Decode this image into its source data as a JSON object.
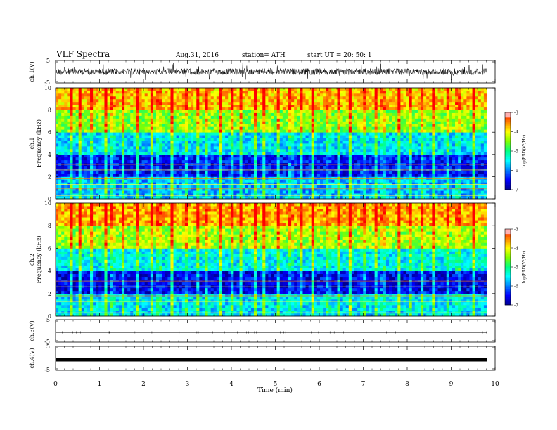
{
  "header": {
    "title": "VLF  Spectra",
    "date": "Aug.31, 2016",
    "station": "station= ATH",
    "start": "start  UT  =   20: 50: 1"
  },
  "chart_data": [
    {
      "type": "line",
      "panel": "ch1-waveform",
      "ylabel": "ch.1(V)",
      "yticks": [
        "5",
        "-5"
      ],
      "ylim": [
        -5,
        5
      ],
      "xlim": [
        0,
        10
      ],
      "signal": "dense noise waveform, amplitude approx ±1 V with spikes to ±2 V"
    },
    {
      "type": "heatmap",
      "panel": "ch1-spectrogram",
      "ylabel": "ch.1\nFrequency  (kHz)",
      "yticks": [
        "0",
        "2",
        "4",
        "6",
        "8",
        "10"
      ],
      "ylim": [
        0,
        10
      ],
      "xlim": [
        0,
        9.8
      ],
      "colorbar": {
        "label": "log(PSD(V²/Hz)",
        "ticks": [
          "-3",
          "-4",
          "-5",
          "-6",
          "-7"
        ],
        "range": [
          -7,
          -3
        ]
      },
      "description_levels": [
        {
          "freq_khz": [
            0,
            2
          ],
          "logpsd": -5.8
        },
        {
          "freq_khz": [
            2,
            4
          ],
          "logpsd": -6.5
        },
        {
          "freq_khz": [
            4,
            6
          ],
          "logpsd": -5.6
        },
        {
          "freq_khz": [
            6,
            8
          ],
          "logpsd": -4.5
        },
        {
          "freq_khz": [
            8,
            10
          ],
          "logpsd": -3.8
        }
      ],
      "spheric_times_min": [
        0.35,
        0.55,
        0.8,
        1.15,
        1.3,
        1.55,
        1.85,
        2.2,
        2.35,
        2.65,
        2.95,
        3.25,
        3.45,
        3.75,
        4.0,
        4.2,
        4.55,
        4.75,
        5.05,
        5.35,
        5.6,
        5.85,
        6.2,
        6.45,
        6.7,
        7.0,
        7.3,
        7.45,
        7.8,
        8.05,
        8.35,
        8.6,
        8.9,
        9.15,
        9.5
      ]
    },
    {
      "type": "heatmap",
      "panel": "ch2-spectrogram",
      "ylabel": "ch.2\nFrequency  (kHz)",
      "yticks": [
        "0",
        "2",
        "4",
        "6",
        "8",
        "10"
      ],
      "ylim": [
        0,
        10
      ],
      "xlim": [
        0,
        9.8
      ],
      "colorbar": {
        "label": "log(PSD(V²/Hz)",
        "ticks": [
          "-3",
          "-4",
          "-5",
          "-6",
          "-7"
        ],
        "range": [
          -7,
          -3
        ]
      },
      "description_levels": [
        {
          "freq_khz": [
            0,
            2
          ],
          "logpsd": -5.6
        },
        {
          "freq_khz": [
            2,
            4
          ],
          "logpsd": -6.6
        },
        {
          "freq_khz": [
            4,
            6
          ],
          "logpsd": -5.5
        },
        {
          "freq_khz": [
            6,
            8
          ],
          "logpsd": -4.4
        },
        {
          "freq_khz": [
            8,
            10
          ],
          "logpsd": -3.7
        }
      ],
      "spheric_times_min": [
        0.35,
        0.55,
        0.8,
        1.15,
        1.3,
        1.55,
        1.85,
        2.2,
        2.35,
        2.65,
        2.95,
        3.25,
        3.45,
        3.75,
        4.0,
        4.2,
        4.55,
        4.75,
        5.05,
        5.35,
        5.6,
        5.85,
        6.2,
        6.45,
        6.7,
        7.0,
        7.3,
        7.45,
        7.8,
        8.05,
        8.35,
        8.6,
        8.9,
        9.15,
        9.5
      ]
    },
    {
      "type": "line",
      "panel": "ch3-waveform",
      "ylabel": "ch.3(V)",
      "yticks": [
        "5",
        "-5"
      ],
      "ylim": [
        -5,
        5
      ],
      "xlim": [
        0,
        10
      ],
      "signal": "flat line near 0 V"
    },
    {
      "type": "line",
      "panel": "ch4-waveform",
      "ylabel": "ch.4(V)",
      "yticks": [
        "5",
        "-5"
      ],
      "ylim": [
        -5,
        5
      ],
      "xlim": [
        0,
        10
      ],
      "signal": "thick flat line near 0 V"
    }
  ],
  "xaxis": {
    "label": "Time  (min)",
    "ticks": [
      "0",
      "1",
      "2",
      "3",
      "4",
      "5",
      "6",
      "7",
      "8",
      "9",
      "10"
    ]
  },
  "colors": {
    "scale": [
      "#000090",
      "#0000ff",
      "#0080ff",
      "#00ffff",
      "#00ff80",
      "#80ff00",
      "#ffff00",
      "#ff8000",
      "#ff0000"
    ]
  }
}
